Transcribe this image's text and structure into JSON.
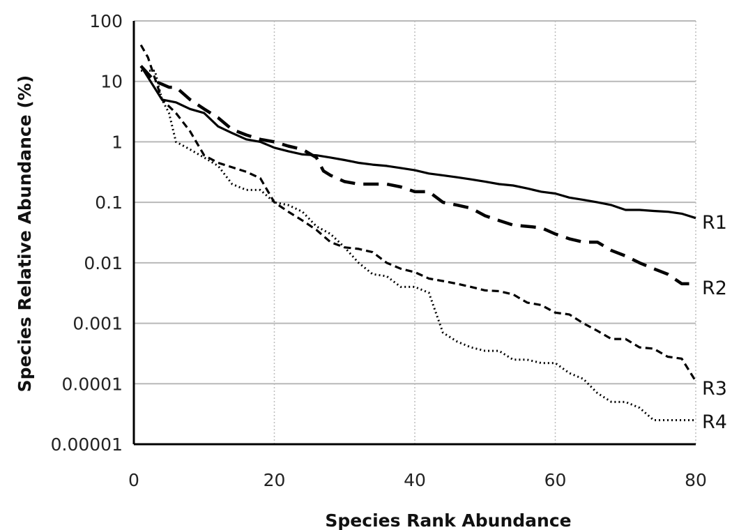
{
  "chart_data": {
    "type": "line",
    "title": "",
    "xlabel": "Species Rank Abundance",
    "ylabel": "Species Relative Abundance (%)",
    "xlim": [
      0,
      80
    ],
    "ylim": [
      1e-05,
      100
    ],
    "y_scale": "log",
    "grid": {
      "horizontal": true,
      "vertical": true,
      "vertical_style": "dotted"
    },
    "x_ticks": [
      "0",
      "20",
      "40",
      "60",
      "80"
    ],
    "y_ticks": [
      "100",
      "10",
      "1",
      "0.1",
      "0.01",
      "0.001",
      "0.0001",
      "0.00001"
    ],
    "series": [
      {
        "name": "R1",
        "style": "solid",
        "x": [
          1,
          4,
          6,
          8,
          10,
          12,
          14,
          16,
          18,
          20,
          22,
          24,
          26,
          28,
          30,
          32,
          34,
          36,
          38,
          40,
          42,
          44,
          46,
          48,
          50,
          52,
          54,
          56,
          58,
          60,
          62,
          64,
          66,
          68,
          70,
          72,
          74,
          76,
          78,
          80
        ],
        "y": [
          18,
          5,
          4.5,
          3.5,
          3,
          1.8,
          1.4,
          1.1,
          1.0,
          0.8,
          0.7,
          0.62,
          0.6,
          0.55,
          0.5,
          0.45,
          0.42,
          0.4,
          0.37,
          0.34,
          0.3,
          0.28,
          0.26,
          0.24,
          0.22,
          0.2,
          0.19,
          0.17,
          0.15,
          0.14,
          0.12,
          0.11,
          0.1,
          0.09,
          0.075,
          0.075,
          0.072,
          0.07,
          0.065,
          0.055
        ]
      },
      {
        "name": "R2",
        "style": "long-dash",
        "x": [
          1,
          3,
          4,
          5,
          6,
          8,
          10,
          12,
          14,
          16,
          18,
          20,
          22,
          24,
          26,
          27,
          28,
          30,
          32,
          34,
          36,
          38,
          40,
          42,
          44,
          46,
          48,
          50,
          52,
          54,
          56,
          58,
          60,
          62,
          64,
          66,
          68,
          70,
          72,
          74,
          76,
          78,
          80
        ],
        "y": [
          18,
          10,
          9,
          8,
          8,
          5,
          3.5,
          2.5,
          1.6,
          1.3,
          1.1,
          1.0,
          0.85,
          0.75,
          0.55,
          0.33,
          0.28,
          0.22,
          0.2,
          0.2,
          0.2,
          0.18,
          0.15,
          0.15,
          0.1,
          0.09,
          0.08,
          0.06,
          0.05,
          0.042,
          0.04,
          0.038,
          0.03,
          0.025,
          0.022,
          0.022,
          0.016,
          0.013,
          0.01,
          0.008,
          0.0065,
          0.0045,
          0.0045
        ]
      },
      {
        "name": "R3",
        "style": "dashed",
        "x": [
          1,
          2,
          4,
          6,
          8,
          10,
          12,
          14,
          16,
          18,
          20,
          22,
          24,
          26,
          28,
          30,
          32,
          34,
          36,
          38,
          40,
          42,
          44,
          46,
          48,
          50,
          52,
          54,
          56,
          58,
          60,
          62,
          64,
          66,
          68,
          70,
          72,
          74,
          76,
          78,
          80
        ],
        "y": [
          40,
          25,
          5,
          3,
          1.5,
          0.6,
          0.45,
          0.38,
          0.32,
          0.25,
          0.1,
          0.07,
          0.05,
          0.035,
          0.022,
          0.018,
          0.017,
          0.015,
          0.01,
          0.008,
          0.007,
          0.0055,
          0.005,
          0.0045,
          0.004,
          0.0035,
          0.0034,
          0.003,
          0.0022,
          0.002,
          0.0015,
          0.0014,
          0.001,
          0.00075,
          0.00055,
          0.00055,
          0.0004,
          0.00038,
          0.00028,
          0.00026,
          0.00011
        ]
      },
      {
        "name": "R4",
        "style": "dotted",
        "x": [
          1,
          3,
          4,
          5,
          6,
          8,
          10,
          12,
          14,
          16,
          18,
          20,
          22,
          24,
          26,
          28,
          30,
          32,
          34,
          36,
          38,
          40,
          42,
          43,
          44,
          46,
          48,
          50,
          52,
          54,
          56,
          58,
          60,
          62,
          64,
          66,
          68,
          70,
          72,
          74,
          76,
          78,
          80
        ],
        "y": [
          15,
          15,
          5,
          3,
          1,
          0.75,
          0.55,
          0.4,
          0.2,
          0.16,
          0.16,
          0.1,
          0.09,
          0.07,
          0.04,
          0.03,
          0.018,
          0.01,
          0.0065,
          0.006,
          0.004,
          0.004,
          0.0032,
          0.0015,
          0.0007,
          0.0005,
          0.0004,
          0.00035,
          0.00035,
          0.00025,
          0.00025,
          0.00022,
          0.00022,
          0.00015,
          0.00012,
          7e-05,
          5e-05,
          5e-05,
          4e-05,
          2.5e-05,
          2.5e-05,
          2.5e-05,
          2.5e-05
        ]
      }
    ]
  }
}
